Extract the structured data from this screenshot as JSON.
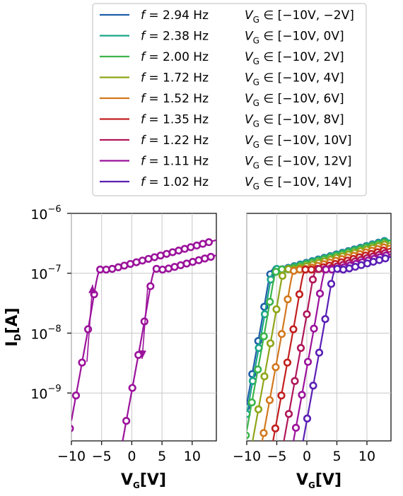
{
  "legend": {
    "entries": [
      {
        "f": "2.94 Hz",
        "range": "[−10V, −2V]",
        "color": "#1f5fa8"
      },
      {
        "f": "2.38 Hz",
        "range": "[−10V, 0V]",
        "color": "#1aa58a"
      },
      {
        "f": "2.00 Hz",
        "range": "[−10V, 2V]",
        "color": "#3bb54a"
      },
      {
        "f": "1.72 Hz",
        "range": "[−10V, 4V]",
        "color": "#8fa519"
      },
      {
        "f": "1.52 Hz",
        "range": "[−10V, 6V]",
        "color": "#d2781e"
      },
      {
        "f": "1.35 Hz",
        "range": "[−10V, 8V]",
        "color": "#c21f1f"
      },
      {
        "f": "1.22 Hz",
        "range": "[−10V, 10V]",
        "color": "#b0175a"
      },
      {
        "f": "1.11 Hz",
        "range": "[−10V, 12V]",
        "color": "#9b129b"
      },
      {
        "f": "1.02 Hz",
        "range": "[−10V, 14V]",
        "color": "#5a1fb4"
      }
    ]
  },
  "chart_data": [
    {
      "type": "line",
      "panel": "left",
      "xlabel": "V",
      "xlabel_sub": "G",
      "xlabel_unit": "[V]",
      "ylabel": "I",
      "ylabel_sub": "D",
      "ylabel_unit": "[A]",
      "xlim": [
        -10,
        14
      ],
      "ylim_exp": [
        -9.8,
        -6
      ],
      "yscale": "log",
      "xticks": [
        -10,
        -5,
        0,
        5,
        10
      ],
      "xtick_labels": [
        "−10",
        "−5",
        "0",
        "5",
        "10"
      ],
      "yticks": [
        -9,
        -8,
        -7,
        -6
      ],
      "ytick_base": "10",
      "ytick_exps": [
        "−9",
        "−8",
        "−7",
        "−6"
      ],
      "grid": true,
      "annotations": [
        "upward arrow (forward sweep)",
        "downward arrow (reverse sweep)"
      ],
      "series": [
        {
          "color": "#9b129b",
          "vth_up": -5.8,
          "vth_down": 3.3,
          "vmax": 12
        }
      ]
    },
    {
      "type": "line",
      "panel": "right",
      "xlabel": "V",
      "xlabel_sub": "G",
      "xlabel_unit": "[V]",
      "xlim": [
        -10,
        14
      ],
      "ylim_exp": [
        -9.8,
        -6
      ],
      "yscale": "log",
      "xticks": [
        -10,
        -5,
        0,
        5,
        10
      ],
      "xtick_labels": [
        "−10",
        "−5",
        "0",
        "5",
        "10"
      ],
      "grid": true,
      "series": [
        {
          "color": "#1f5fa8",
          "vth_down": -6.3
        },
        {
          "color": "#1aa58a",
          "vth_down": -6.0
        },
        {
          "color": "#3bb54a",
          "vth_down": -5.5
        },
        {
          "color": "#8fa519",
          "vth_down": -4.2
        },
        {
          "color": "#d2781e",
          "vth_down": -2.6
        },
        {
          "color": "#c21f1f",
          "vth_down": -0.8
        },
        {
          "color": "#b0175a",
          "vth_down": 1.0
        },
        {
          "color": "#9b129b",
          "vth_down": 2.6
        },
        {
          "color": "#5a1fb4",
          "vth_down": 4.2
        }
      ]
    }
  ]
}
